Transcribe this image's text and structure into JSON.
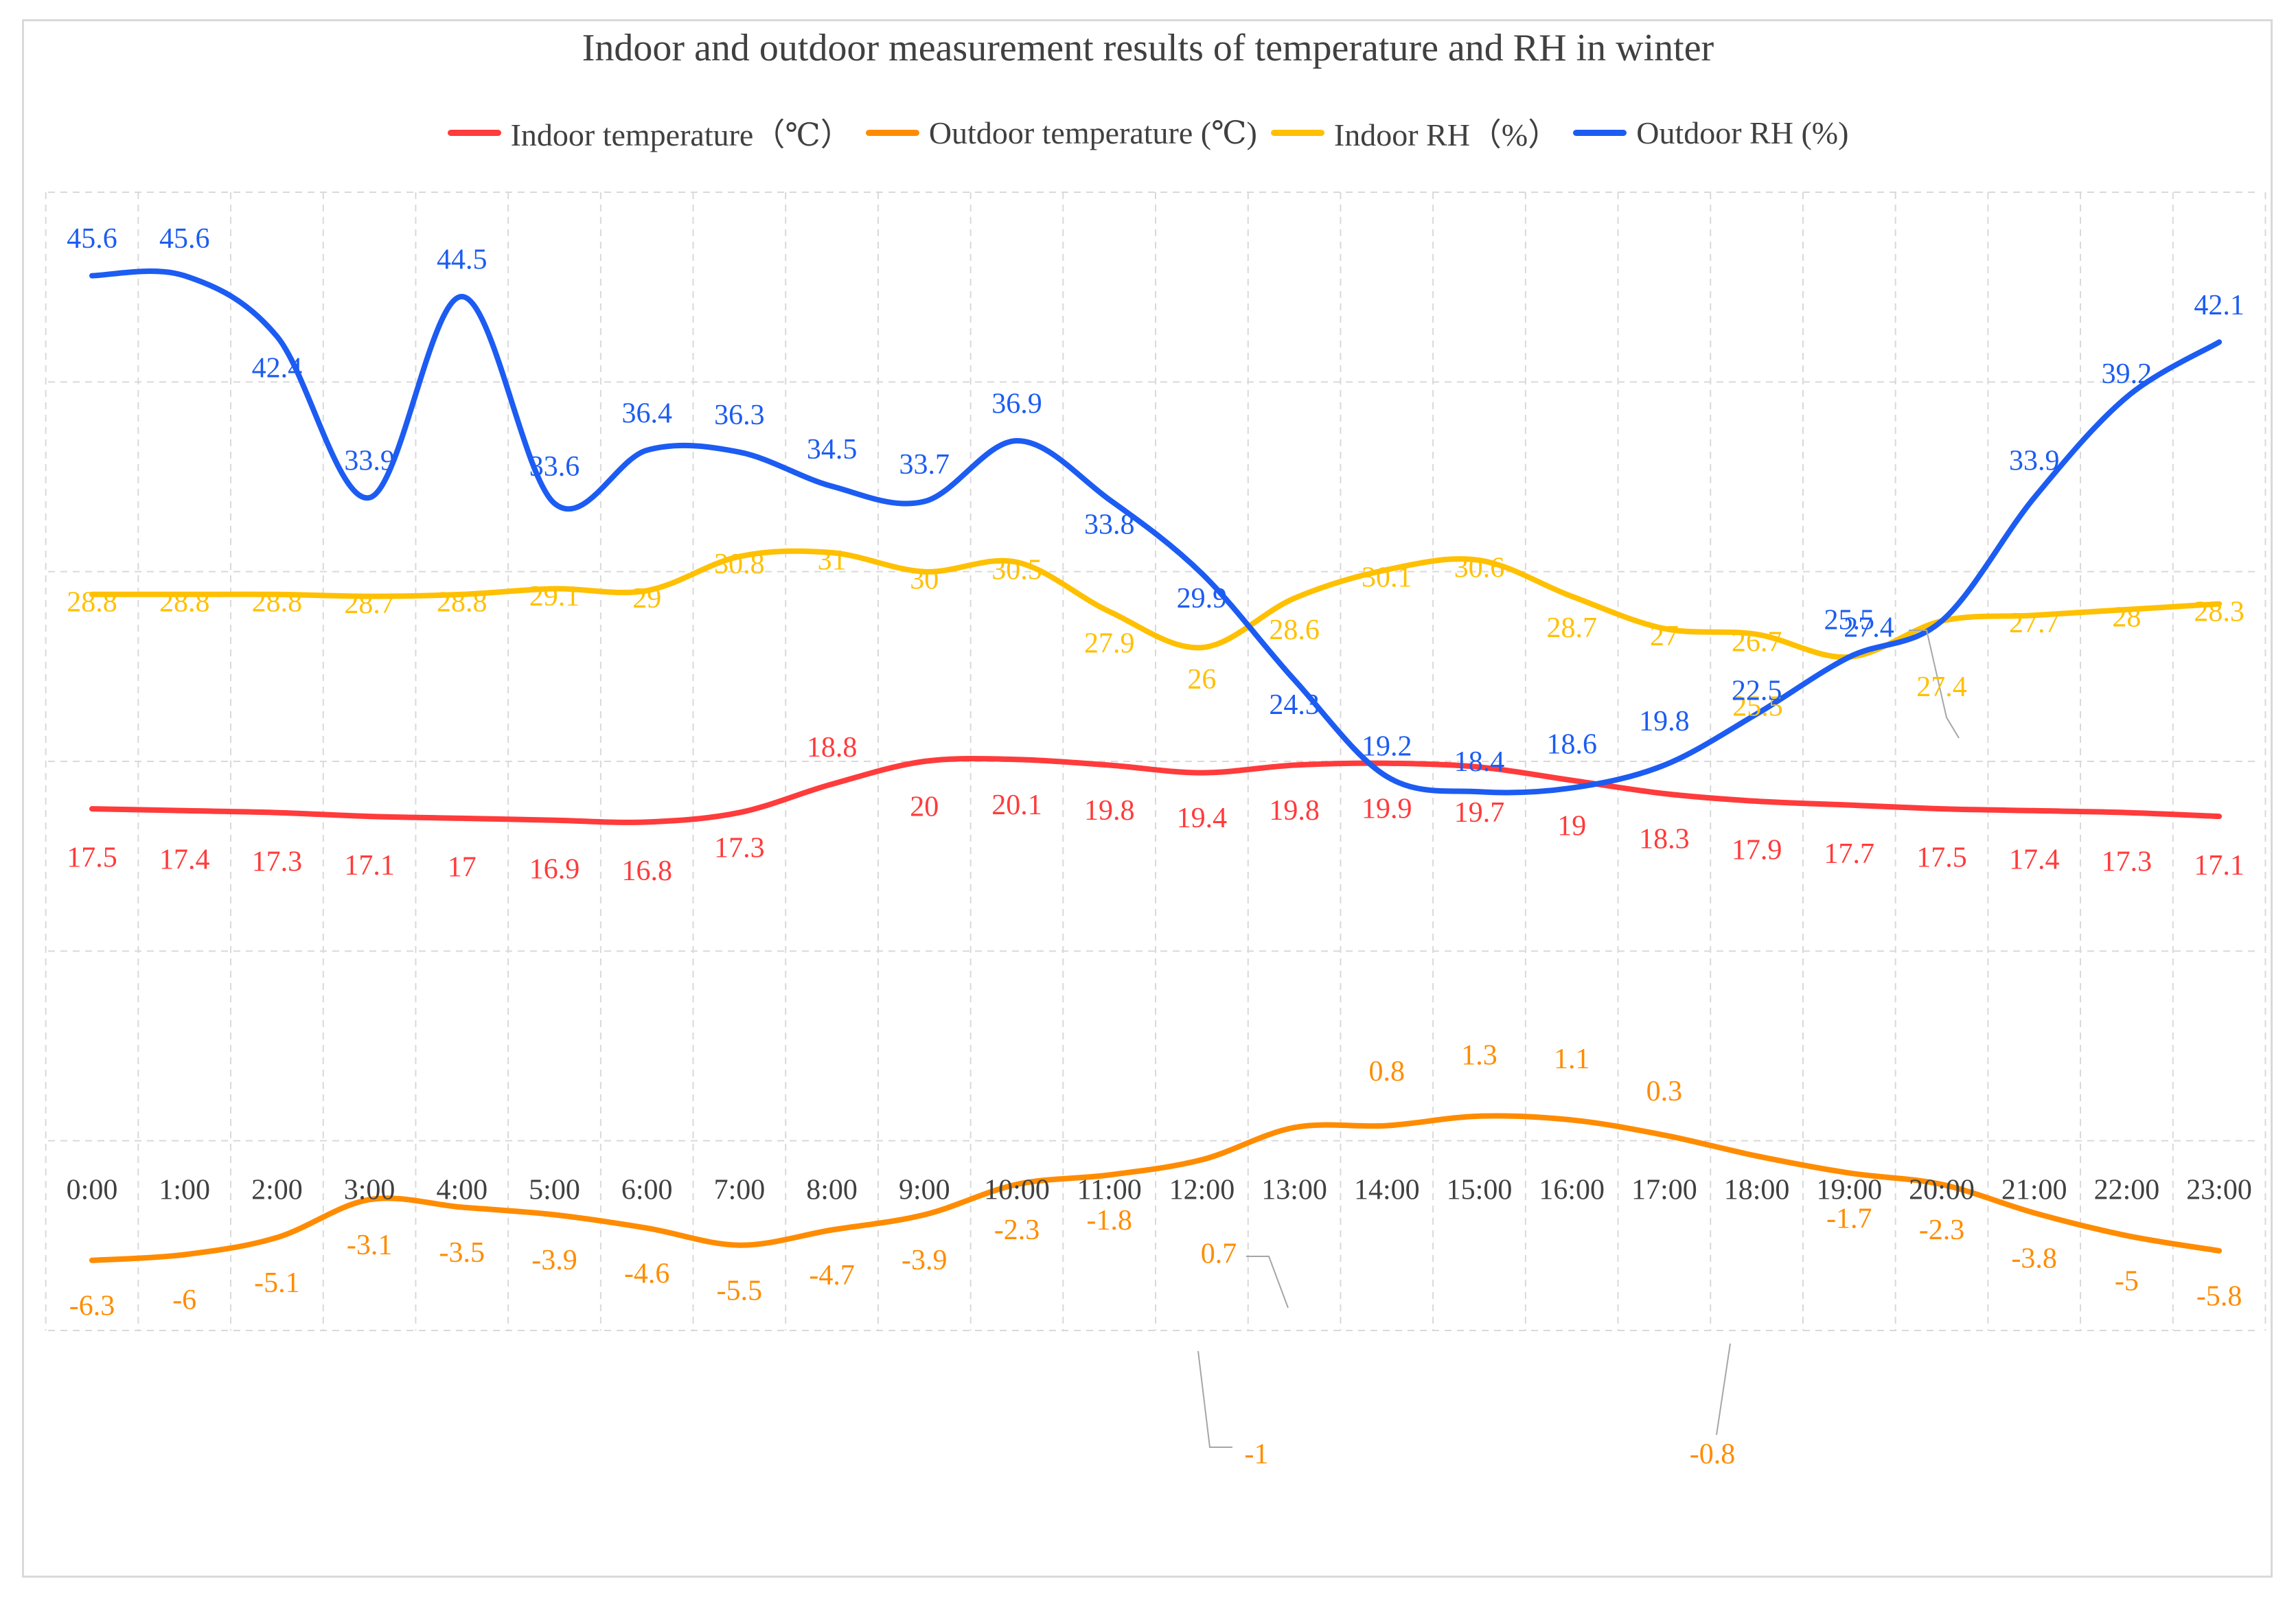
{
  "chart_data": {
    "type": "line",
    "title": "Indoor and outdoor measurement results of temperature and RH in winter",
    "xlabel": "",
    "ylabel": "",
    "ylim": [
      -10,
      50
    ],
    "grid": true,
    "legend_position": "top",
    "categories": [
      "0:00",
      "1:00",
      "2:00",
      "3:00",
      "4:00",
      "5:00",
      "6:00",
      "7:00",
      "8:00",
      "9:00",
      "10:00",
      "11:00",
      "12:00",
      "13:00",
      "14:00",
      "15:00",
      "16:00",
      "17:00",
      "18:00",
      "19:00",
      "20:00",
      "21:00",
      "22:00",
      "23:00"
    ],
    "series": [
      {
        "name": "Indoor temperature（℃）",
        "color": "#ff3b3b",
        "values": [
          17.5,
          17.4,
          17.3,
          17.1,
          17,
          16.9,
          16.8,
          17.3,
          18.8,
          20,
          20.1,
          19.8,
          19.4,
          19.8,
          19.9,
          19.7,
          19,
          18.3,
          17.9,
          17.7,
          17.5,
          17.4,
          17.3,
          17.1
        ]
      },
      {
        "name": "Outdoor temperature (℃)",
        "color": "#ff8c00",
        "values": [
          -6.3,
          -6,
          -5.1,
          -3.1,
          -3.5,
          -3.9,
          -4.6,
          -5.5,
          -4.7,
          -3.9,
          -2.3,
          -1.8,
          -1,
          0.7,
          0.8,
          1.3,
          1.1,
          0.3,
          -0.8,
          -1.7,
          -2.3,
          -3.8,
          -5,
          -5.8
        ]
      },
      {
        "name": "Indoor RH（%）",
        "color": "#ffc000",
        "values": [
          28.8,
          28.8,
          28.8,
          28.7,
          28.8,
          29.1,
          29,
          30.8,
          31,
          30,
          30.5,
          27.9,
          26,
          28.6,
          30.1,
          30.6,
          28.7,
          27,
          26.7,
          25.5,
          27.4,
          27.7,
          28,
          28.3
        ]
      },
      {
        "name": "Outdoor RH (%)",
        "color": "#1c5cf2",
        "values": [
          45.6,
          45.6,
          42.4,
          33.9,
          44.5,
          33.6,
          36.4,
          36.3,
          34.5,
          33.7,
          36.9,
          33.8,
          29.9,
          24.3,
          19.2,
          18.4,
          18.6,
          19.8,
          22.5,
          25.5,
          27.4,
          33.9,
          39.2,
          42.1
        ]
      }
    ]
  }
}
